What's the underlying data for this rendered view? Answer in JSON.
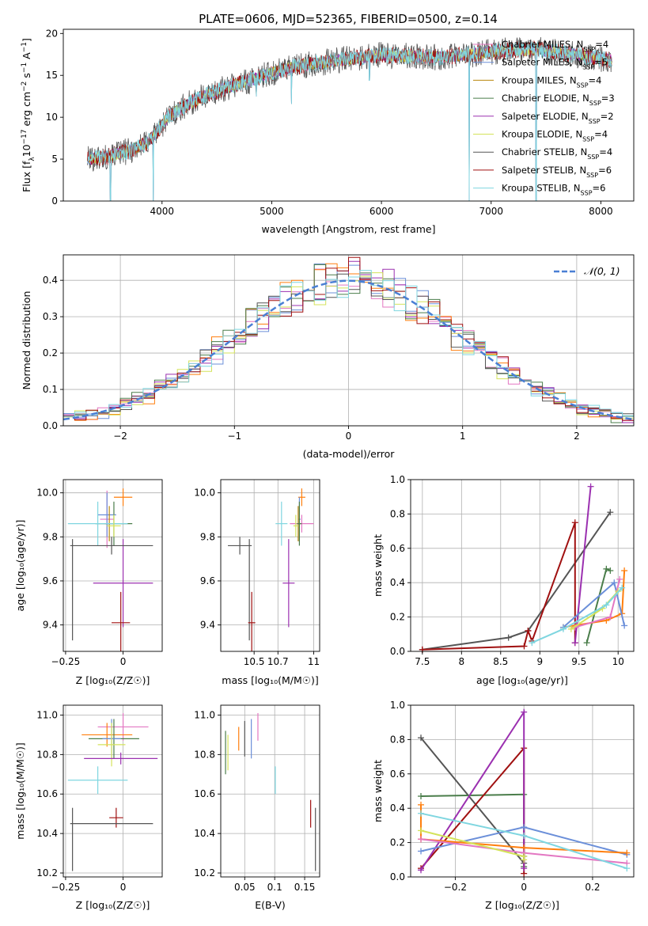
{
  "colors": {
    "Chabrier MILES": "#e377c2",
    "Salpeter MILES": "#6b8fd9",
    "Kroupa MILES": "#b8860b",
    "Chabrier ELODIE": "#4a7d4a",
    "Salpeter ELODIE": "#9b30b0",
    "Kroupa ELODIE": "#d4e35a",
    "Chabrier STELIB": "#555555",
    "Salpeter STELIB": "#a01010",
    "Kroupa STELIB": "#7fd6e0",
    "extra": "#ff7f0e",
    "normal": "#4a7fd4"
  },
  "chart_data": [
    {
      "id": "spectrum",
      "type": "line",
      "title": "PLATE=0606, MJD=52365, FIBERID=0500, z=0.14",
      "xlabel": "wavelength [Angstrom, rest frame]",
      "ylabel_parts": [
        "Flux [f",
        "λ",
        "10",
        "−17",
        " erg cm",
        "−2",
        " s",
        "−1",
        " A",
        "−1",
        "]"
      ],
      "xlim": [
        3100,
        8300
      ],
      "ylim": [
        0,
        20.5
      ],
      "xticks": [
        4000,
        5000,
        6000,
        7000,
        8000
      ],
      "yticks": [
        0,
        5,
        10,
        15,
        20
      ],
      "grid": false,
      "legend_position": "top-right",
      "legend": [
        {
          "name": "Chabrier MILES",
          "nssp": "4"
        },
        {
          "name": "Salpeter MILES",
          "nssp": "5"
        },
        {
          "name": "Kroupa MILES",
          "nssp": "4"
        },
        {
          "name": "Chabrier ELODIE",
          "nssp": "3"
        },
        {
          "name": "Salpeter ELODIE",
          "nssp": "2"
        },
        {
          "name": "Kroupa ELODIE",
          "nssp": "4"
        },
        {
          "name": "Chabrier STELIB",
          "nssp": "4"
        },
        {
          "name": "Salpeter STELIB",
          "nssp": "6"
        },
        {
          "name": "Kroupa STELIB",
          "nssp": "6"
        }
      ],
      "continuum": [
        [
          3320,
          5.0
        ],
        [
          3500,
          5.3
        ],
        [
          3700,
          6.0
        ],
        [
          3850,
          6.8
        ],
        [
          3950,
          8.2
        ],
        [
          4050,
          10.0
        ],
        [
          4200,
          11.3
        ],
        [
          4400,
          12.6
        ],
        [
          4600,
          13.6
        ],
        [
          4800,
          14.4
        ],
        [
          5000,
          15.3
        ],
        [
          5200,
          16.0
        ],
        [
          5400,
          16.4
        ],
        [
          5600,
          16.8
        ],
        [
          5800,
          17.1
        ],
        [
          6000,
          17.4
        ],
        [
          6200,
          17.3
        ],
        [
          6400,
          17.2
        ],
        [
          6600,
          17.2
        ],
        [
          6800,
          17.5
        ],
        [
          7000,
          17.8
        ],
        [
          7200,
          18.0
        ],
        [
          7400,
          18.1
        ],
        [
          7600,
          17.8
        ],
        [
          7800,
          17.4
        ],
        [
          8000,
          17.0
        ],
        [
          8100,
          16.8
        ]
      ],
      "dips": [
        [
          3530,
          0
        ],
        [
          3920,
          0
        ],
        [
          4860,
          12.5
        ],
        [
          5180,
          11.6
        ],
        [
          5890,
          14.4
        ],
        [
          6800,
          0
        ],
        [
          7410,
          0
        ]
      ]
    },
    {
      "id": "residuals",
      "type": "histogram",
      "xlabel": "(data-model)/error",
      "ylabel": "Normed distribution",
      "xlim": [
        -2.5,
        2.5
      ],
      "ylim": [
        0,
        0.47
      ],
      "xticks": [
        -2,
        -1,
        0,
        1,
        2
      ],
      "yticks": [
        0.0,
        0.1,
        0.2,
        0.3,
        0.4
      ],
      "grid": true,
      "bin_width": 0.1,
      "legend_label": "𝒩(0, 1)",
      "legend_position": "top-right"
    },
    {
      "id": "age-vs-Z",
      "type": "errorbar",
      "xlabel": "Z [log₁₀(Z/Z☉)]",
      "ylabel": "age  [log₁₀(age/yr)]",
      "xlim": [
        -0.26,
        0.17
      ],
      "ylim": [
        9.28,
        10.06
      ],
      "xticks": [
        -0.25,
        0.0
      ],
      "yticks": [
        9.4,
        9.6,
        9.8,
        10.0
      ],
      "grid": true,
      "points": [
        {
          "s": "extra",
          "x": 0.0,
          "y": 9.98,
          "xe": 0.04,
          "ye": 0.04
        },
        {
          "s": "Chabrier MILES",
          "x": -0.07,
          "y": 9.88,
          "xe": 0.03,
          "ye": 0.13
        },
        {
          "s": "Salpeter MILES",
          "x": -0.07,
          "y": 9.9,
          "xe": 0.04,
          "ye": 0.1
        },
        {
          "s": "Kroupa MILES",
          "x": -0.06,
          "y": 9.86,
          "xe": 0.02,
          "ye": 0.08
        },
        {
          "s": "Chabrier ELODIE",
          "x": -0.04,
          "y": 9.86,
          "xe": 0.08,
          "ye": 0.1
        },
        {
          "s": "Kroupa STELIB",
          "x": -0.11,
          "y": 9.86,
          "xe": 0.13,
          "ye": 0.1
        },
        {
          "s": "Kroupa ELODIE",
          "x": -0.04,
          "y": 9.85,
          "xe": 0.03,
          "ye": 0.05
        },
        {
          "s": "Salpeter ELODIE",
          "x": 0.0,
          "y": 9.59,
          "xe": 0.13,
          "ye": 0.2
        },
        {
          "s": "Chabrier STELIB",
          "x": -0.05,
          "y": 9.76,
          "xe": 0.18,
          "ye": 0.04
        },
        {
          "s": "Chabrier STELIB",
          "x": -0.22,
          "y": 9.56,
          "xe": 0.0,
          "ye": 0.23
        },
        {
          "s": "Salpeter STELIB",
          "x": -0.01,
          "y": 9.41,
          "xe": 0.04,
          "ye": 0.14
        }
      ]
    },
    {
      "id": "age-vs-mass",
      "type": "errorbar",
      "xlabel": "mass [log₁₀(M/M☉)]",
      "ylabel": "",
      "xlim": [
        10.22,
        11.05
      ],
      "ylim": [
        9.28,
        10.06
      ],
      "xticks": [
        10.5,
        10.7,
        11.0
      ],
      "yticks": [
        9.4,
        9.6,
        9.8,
        10.0
      ],
      "grid": true,
      "points": [
        {
          "s": "extra",
          "x": 10.9,
          "y": 9.98,
          "xe": 0.03,
          "ye": 0.04
        },
        {
          "s": "Salpeter MILES",
          "x": 10.88,
          "y": 9.88,
          "xe": 0.01,
          "ye": 0.1
        },
        {
          "s": "Kroupa MILES",
          "x": 10.87,
          "y": 9.86,
          "xe": 0.02,
          "ye": 0.08
        },
        {
          "s": "Chabrier MILES",
          "x": 10.9,
          "y": 9.86,
          "xe": 0.1,
          "ye": 0.04
        },
        {
          "s": "Kroupa STELIB",
          "x": 10.73,
          "y": 9.86,
          "xe": 0.05,
          "ye": 0.1
        },
        {
          "s": "Chabrier ELODIE",
          "x": 10.88,
          "y": 9.86,
          "xe": 0.02,
          "ye": 0.1
        },
        {
          "s": "Kroupa ELODIE",
          "x": 10.85,
          "y": 9.85,
          "xe": 0.02,
          "ye": 0.05
        },
        {
          "s": "Salpeter ELODIE",
          "x": 10.79,
          "y": 9.59,
          "xe": 0.05,
          "ye": 0.2
        },
        {
          "s": "Chabrier STELIB",
          "x": 10.38,
          "y": 9.76,
          "xe": 0.1,
          "ye": 0.04
        },
        {
          "s": "Chabrier STELIB",
          "x": 10.46,
          "y": 9.56,
          "xe": 0.0,
          "ye": 0.23
        },
        {
          "s": "Salpeter STELIB",
          "x": 10.48,
          "y": 9.41,
          "xe": 0.03,
          "ye": 0.14
        }
      ]
    },
    {
      "id": "weight-vs-age",
      "type": "line",
      "xlabel": "age  [log₁₀(age/yr)]",
      "ylabel": "mass weight",
      "xlim": [
        7.35,
        10.2
      ],
      "ylim": [
        0,
        1.0
      ],
      "xticks": [
        7.5,
        8.0,
        8.5,
        9.0,
        9.5,
        10.0
      ],
      "yticks": [
        0.0,
        0.2,
        0.4,
        0.6,
        0.8,
        1.0
      ],
      "grid": true,
      "series": [
        {
          "s": "Chabrier STELIB",
          "x": [
            7.5,
            8.6,
            8.85,
            9.9
          ],
          "y": [
            0.01,
            0.08,
            0.12,
            0.81
          ]
        },
        {
          "s": "Salpeter STELIB",
          "x": [
            7.5,
            8.8,
            8.85,
            8.9,
            9.45,
            9.45,
            9.45
          ],
          "y": [
            0.01,
            0.03,
            0.12,
            0.06,
            0.75,
            0.05,
            0.14
          ]
        },
        {
          "s": "Salpeter ELODIE",
          "x": [
            9.45,
            9.65
          ],
          "y": [
            0.05,
            0.96
          ]
        },
        {
          "s": "Chabrier ELODIE",
          "x": [
            9.6,
            9.85,
            9.9
          ],
          "y": [
            0.05,
            0.48,
            0.47
          ]
        },
        {
          "s": "extra",
          "x": [
            9.3,
            9.85,
            10.05,
            10.08
          ],
          "y": [
            0.14,
            0.18,
            0.22,
            0.47
          ]
        },
        {
          "s": "Salpeter MILES",
          "x": [
            9.3,
            9.95,
            10.08
          ],
          "y": [
            0.14,
            0.4,
            0.15
          ]
        },
        {
          "s": "Chabrier MILES",
          "x": [
            9.45,
            9.9,
            10.02
          ],
          "y": [
            0.14,
            0.2,
            0.42
          ]
        },
        {
          "s": "Kroupa ELODIE",
          "x": [
            9.4,
            9.8,
            10.0
          ],
          "y": [
            0.13,
            0.25,
            0.35
          ]
        },
        {
          "s": "Kroupa STELIB",
          "x": [
            8.9,
            9.3,
            9.85,
            10.05
          ],
          "y": [
            0.05,
            0.13,
            0.27,
            0.37
          ]
        }
      ]
    },
    {
      "id": "mass-vs-Z",
      "type": "errorbar",
      "xlabel": "Z [log₁₀(Z/Z☉)]",
      "ylabel": "mass [log₁₀(M/M☉)]",
      "xlim": [
        -0.26,
        0.17
      ],
      "ylim": [
        10.18,
        11.05
      ],
      "xticks": [
        -0.25,
        0.0
      ],
      "yticks": [
        10.2,
        10.4,
        10.6,
        10.8,
        11.0
      ],
      "grid": true,
      "points": [
        {
          "s": "Chabrier MILES",
          "x": 0.0,
          "y": 10.94,
          "xe": 0.11,
          "ye": 0.07
        },
        {
          "s": "extra",
          "x": -0.07,
          "y": 10.9,
          "xe": 0.11,
          "ye": 0.06
        },
        {
          "s": "Chabrier ELODIE",
          "x": -0.04,
          "y": 10.88,
          "xe": 0.11,
          "ye": 0.1
        },
        {
          "s": "Salpeter MILES",
          "x": -0.05,
          "y": 10.88,
          "xe": 0.04,
          "ye": 0.1
        },
        {
          "s": "Kroupa ELODIE",
          "x": -0.05,
          "y": 10.85,
          "xe": 0.06,
          "ye": 0.11
        },
        {
          "s": "Salpeter ELODIE",
          "x": -0.01,
          "y": 10.78,
          "xe": 0.16,
          "ye": 0.03
        },
        {
          "s": "Kroupa STELIB",
          "x": -0.11,
          "y": 10.67,
          "xe": 0.13,
          "ye": 0.07
        },
        {
          "s": "Salpeter STELIB",
          "x": -0.03,
          "y": 10.48,
          "xe": 0.03,
          "ye": 0.05
        },
        {
          "s": "Chabrier STELIB",
          "x": -0.05,
          "y": 10.45,
          "xe": 0.18,
          "ye": 0.0
        },
        {
          "s": "Chabrier STELIB",
          "x": -0.22,
          "y": 10.37,
          "xe": 0.0,
          "ye": 0.16
        }
      ]
    },
    {
      "id": "mass-vs-ebv",
      "type": "errorbar",
      "xlabel": "E(B-V)",
      "ylabel": "",
      "xlim": [
        0.01,
        0.175
      ],
      "ylim": [
        10.18,
        11.05
      ],
      "xticks": [
        0.05,
        0.1,
        0.15
      ],
      "yticks": [
        10.2,
        10.4,
        10.6,
        10.8,
        11.0
      ],
      "grid": true,
      "points": [
        {
          "s": "Chabrier ELODIE",
          "x": 0.018,
          "y": 10.81,
          "xe": 0.0,
          "ye": 0.11
        },
        {
          "s": "Kroupa ELODIE",
          "x": 0.022,
          "y": 10.81,
          "xe": 0.0,
          "ye": 0.09
        },
        {
          "s": "extra",
          "x": 0.04,
          "y": 10.88,
          "xe": 0.0,
          "ye": 0.06
        },
        {
          "s": "Chabrier STELIB",
          "x": 0.05,
          "y": 10.88,
          "xe": 0.0,
          "ye": 0.09
        },
        {
          "s": "Salpeter MILES",
          "x": 0.061,
          "y": 10.88,
          "xe": 0.0,
          "ye": 0.1
        },
        {
          "s": "Chabrier MILES",
          "x": 0.072,
          "y": 10.94,
          "xe": 0.0,
          "ye": 0.07
        },
        {
          "s": "Kroupa STELIB",
          "x": 0.101,
          "y": 10.67,
          "xe": 0.0,
          "ye": 0.07
        },
        {
          "s": "Salpeter STELIB",
          "x": 0.16,
          "y": 10.5,
          "xe": 0.0,
          "ye": 0.07
        },
        {
          "s": "Chabrier STELIB",
          "x": 0.168,
          "y": 10.37,
          "xe": 0.0,
          "ye": 0.16
        }
      ]
    },
    {
      "id": "weight-vs-Z",
      "type": "line",
      "xlabel": "Z [log₁₀(Z/Z☉)]",
      "ylabel": "mass weight",
      "xlim": [
        -0.33,
        0.32
      ],
      "ylim": [
        0,
        1.0
      ],
      "xticks": [
        -0.2,
        0.0,
        0.2
      ],
      "yticks": [
        0.0,
        0.2,
        0.4,
        0.6,
        0.8,
        1.0
      ],
      "grid": true,
      "series": [
        {
          "s": "Chabrier STELIB",
          "x": [
            -0.3,
            0.0,
            0.0
          ],
          "y": [
            0.81,
            0.08,
            0.12
          ]
        },
        {
          "s": "Chabrier ELODIE",
          "x": [
            -0.3,
            0.0,
            0.0
          ],
          "y": [
            0.47,
            0.48,
            0.06
          ]
        },
        {
          "s": "Salpeter STELIB",
          "x": [
            -0.3,
            0.0,
            0.0,
            0.0
          ],
          "y": [
            0.05,
            0.75,
            0.14,
            0.02
          ]
        },
        {
          "s": "Salpeter ELODIE",
          "x": [
            -0.3,
            0.0,
            0.0
          ],
          "y": [
            0.04,
            0.96,
            0.05
          ]
        },
        {
          "s": "Salpeter MILES",
          "x": [
            -0.3,
            0.0,
            0.3
          ],
          "y": [
            0.15,
            0.29,
            0.13
          ]
        },
        {
          "s": "extra",
          "x": [
            -0.3,
            -0.3,
            0.0,
            0.3
          ],
          "y": [
            0.42,
            0.22,
            0.17,
            0.14
          ]
        },
        {
          "s": "Chabrier MILES",
          "x": [
            -0.3,
            0.0,
            0.3
          ],
          "y": [
            0.22,
            0.14,
            0.08
          ]
        },
        {
          "s": "Kroupa ELODIE",
          "x": [
            -0.3,
            0.0,
            0.0
          ],
          "y": [
            0.27,
            0.12,
            0.1
          ]
        },
        {
          "s": "Kroupa STELIB",
          "x": [
            -0.3,
            0.0,
            0.3
          ],
          "y": [
            0.37,
            0.24,
            0.05
          ]
        }
      ]
    }
  ]
}
